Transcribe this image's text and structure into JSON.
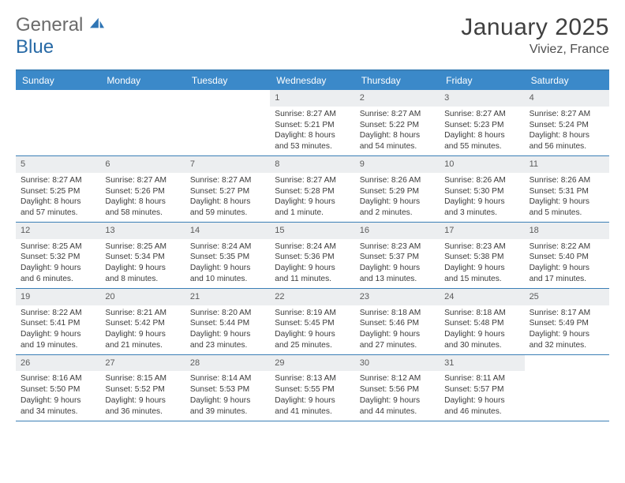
{
  "logo": {
    "text1": "General",
    "text2": "Blue"
  },
  "title": "January 2025",
  "location": "Viviez, France",
  "colors": {
    "header_bar": "#3b89c9",
    "border": "#3b7fb6",
    "daynum_bg": "#eceef0",
    "logo_gray": "#6b6b6b",
    "logo_blue": "#286aa6"
  },
  "weekdays": [
    "Sunday",
    "Monday",
    "Tuesday",
    "Wednesday",
    "Thursday",
    "Friday",
    "Saturday"
  ],
  "weeks": [
    [
      null,
      null,
      null,
      {
        "n": "1",
        "sr": "8:27 AM",
        "ss": "5:21 PM",
        "dl": "8 hours and 53 minutes."
      },
      {
        "n": "2",
        "sr": "8:27 AM",
        "ss": "5:22 PM",
        "dl": "8 hours and 54 minutes."
      },
      {
        "n": "3",
        "sr": "8:27 AM",
        "ss": "5:23 PM",
        "dl": "8 hours and 55 minutes."
      },
      {
        "n": "4",
        "sr": "8:27 AM",
        "ss": "5:24 PM",
        "dl": "8 hours and 56 minutes."
      }
    ],
    [
      {
        "n": "5",
        "sr": "8:27 AM",
        "ss": "5:25 PM",
        "dl": "8 hours and 57 minutes."
      },
      {
        "n": "6",
        "sr": "8:27 AM",
        "ss": "5:26 PM",
        "dl": "8 hours and 58 minutes."
      },
      {
        "n": "7",
        "sr": "8:27 AM",
        "ss": "5:27 PM",
        "dl": "8 hours and 59 minutes."
      },
      {
        "n": "8",
        "sr": "8:27 AM",
        "ss": "5:28 PM",
        "dl": "9 hours and 1 minute."
      },
      {
        "n": "9",
        "sr": "8:26 AM",
        "ss": "5:29 PM",
        "dl": "9 hours and 2 minutes."
      },
      {
        "n": "10",
        "sr": "8:26 AM",
        "ss": "5:30 PM",
        "dl": "9 hours and 3 minutes."
      },
      {
        "n": "11",
        "sr": "8:26 AM",
        "ss": "5:31 PM",
        "dl": "9 hours and 5 minutes."
      }
    ],
    [
      {
        "n": "12",
        "sr": "8:25 AM",
        "ss": "5:32 PM",
        "dl": "9 hours and 6 minutes."
      },
      {
        "n": "13",
        "sr": "8:25 AM",
        "ss": "5:34 PM",
        "dl": "9 hours and 8 minutes."
      },
      {
        "n": "14",
        "sr": "8:24 AM",
        "ss": "5:35 PM",
        "dl": "9 hours and 10 minutes."
      },
      {
        "n": "15",
        "sr": "8:24 AM",
        "ss": "5:36 PM",
        "dl": "9 hours and 11 minutes."
      },
      {
        "n": "16",
        "sr": "8:23 AM",
        "ss": "5:37 PM",
        "dl": "9 hours and 13 minutes."
      },
      {
        "n": "17",
        "sr": "8:23 AM",
        "ss": "5:38 PM",
        "dl": "9 hours and 15 minutes."
      },
      {
        "n": "18",
        "sr": "8:22 AM",
        "ss": "5:40 PM",
        "dl": "9 hours and 17 minutes."
      }
    ],
    [
      {
        "n": "19",
        "sr": "8:22 AM",
        "ss": "5:41 PM",
        "dl": "9 hours and 19 minutes."
      },
      {
        "n": "20",
        "sr": "8:21 AM",
        "ss": "5:42 PM",
        "dl": "9 hours and 21 minutes."
      },
      {
        "n": "21",
        "sr": "8:20 AM",
        "ss": "5:44 PM",
        "dl": "9 hours and 23 minutes."
      },
      {
        "n": "22",
        "sr": "8:19 AM",
        "ss": "5:45 PM",
        "dl": "9 hours and 25 minutes."
      },
      {
        "n": "23",
        "sr": "8:18 AM",
        "ss": "5:46 PM",
        "dl": "9 hours and 27 minutes."
      },
      {
        "n": "24",
        "sr": "8:18 AM",
        "ss": "5:48 PM",
        "dl": "9 hours and 30 minutes."
      },
      {
        "n": "25",
        "sr": "8:17 AM",
        "ss": "5:49 PM",
        "dl": "9 hours and 32 minutes."
      }
    ],
    [
      {
        "n": "26",
        "sr": "8:16 AM",
        "ss": "5:50 PM",
        "dl": "9 hours and 34 minutes."
      },
      {
        "n": "27",
        "sr": "8:15 AM",
        "ss": "5:52 PM",
        "dl": "9 hours and 36 minutes."
      },
      {
        "n": "28",
        "sr": "8:14 AM",
        "ss": "5:53 PM",
        "dl": "9 hours and 39 minutes."
      },
      {
        "n": "29",
        "sr": "8:13 AM",
        "ss": "5:55 PM",
        "dl": "9 hours and 41 minutes."
      },
      {
        "n": "30",
        "sr": "8:12 AM",
        "ss": "5:56 PM",
        "dl": "9 hours and 44 minutes."
      },
      {
        "n": "31",
        "sr": "8:11 AM",
        "ss": "5:57 PM",
        "dl": "9 hours and 46 minutes."
      },
      null
    ]
  ],
  "labels": {
    "sunrise": "Sunrise:",
    "sunset": "Sunset:",
    "daylight": "Daylight:"
  }
}
